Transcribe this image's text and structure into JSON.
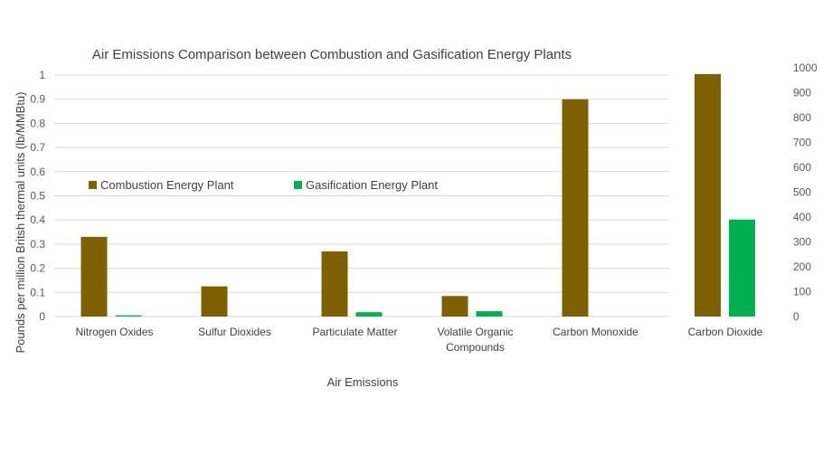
{
  "chart_data": [
    {
      "type": "bar",
      "title": "Air Emissions Comparison between Combustion and Gasification Energy Plants",
      "xlabel": "Air Emissions",
      "ylabel": "Pounds per million Britsh thermal units (lb/MMBtu)",
      "ylim": [
        0,
        1
      ],
      "yticks": [
        "0",
        "0.1",
        "0.2",
        "0.3",
        "0.4",
        "0.5",
        "0.6",
        "0.7",
        "0.8",
        "0.9",
        "1"
      ],
      "grid": true,
      "legend_position": "upper-left",
      "categories": [
        "Nitrogen Oxides",
        "Sulfur Dioxides",
        "Particulate Matter",
        "Volatile Organic Compounds",
        "Carbon Monoxide"
      ],
      "series": [
        {
          "name": "Combustion Energy Plant",
          "color": "#7f6000",
          "values": [
            0.33,
            0.125,
            0.27,
            0.085,
            0.9
          ]
        },
        {
          "name": "Gasification Energy Plant",
          "color": "#00b050",
          "values": [
            0.005,
            0,
            0.018,
            0.022,
            0
          ]
        }
      ]
    },
    {
      "type": "bar",
      "title": "",
      "xlabel": "",
      "ylabel": "",
      "ylim": [
        0,
        1000
      ],
      "yticks": [
        "0",
        "100",
        "200",
        "300",
        "400",
        "500",
        "600",
        "700",
        "800",
        "900",
        "1000"
      ],
      "grid": false,
      "categories": [
        "Carbon Dioxide"
      ],
      "series": [
        {
          "name": "Combustion Energy Plant",
          "color": "#7f6000",
          "values": [
            975
          ]
        },
        {
          "name": "Gasification Energy Plant",
          "color": "#00b050",
          "values": [
            390
          ]
        }
      ]
    }
  ]
}
